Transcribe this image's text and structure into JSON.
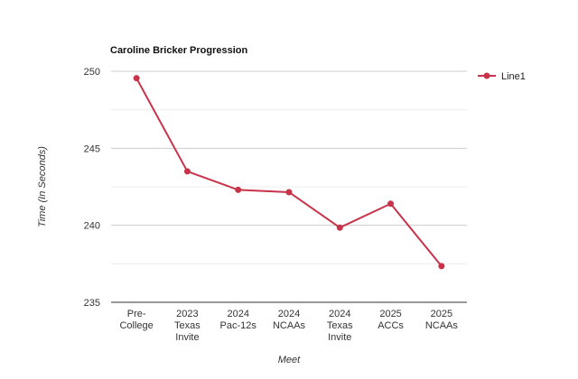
{
  "chart_data": {
    "type": "line",
    "title": "Caroline Bricker Progression",
    "xlabel": "Meet",
    "ylabel": "Time (In Seconds)",
    "categories": [
      [
        "Pre-",
        "College"
      ],
      [
        "2023",
        "Texas",
        "Invite"
      ],
      [
        "2024",
        "Pac-12s"
      ],
      [
        "2024",
        "NCAAs"
      ],
      [
        "2024",
        "Texas",
        "Invite"
      ],
      [
        "2025",
        "ACCs"
      ],
      [
        "2025",
        "NCAAs"
      ]
    ],
    "series": [
      {
        "name": "Line1",
        "color": "#c8334a",
        "values": [
          249.55,
          243.5,
          242.3,
          242.15,
          239.85,
          241.4,
          237.35
        ]
      }
    ],
    "ylim": [
      235,
      250
    ],
    "yticks": [
      235,
      240,
      245,
      250
    ],
    "grid": true,
    "legend": "right"
  }
}
